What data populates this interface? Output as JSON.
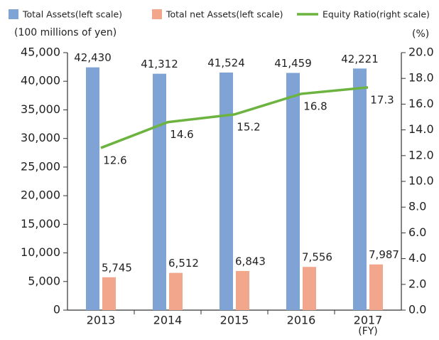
{
  "chart_data": {
    "type": "bar_line",
    "y_label": "(100 millions of yen)",
    "y2_label": "(%)",
    "x_unit_label": "(FY)",
    "categories": [
      "2013",
      "2014",
      "2015",
      "2016",
      "2017"
    ],
    "series": [
      {
        "name": "Total Assets(left scale)",
        "type": "bar",
        "color": "#7fa3d4",
        "values": [
          42430,
          41312,
          41524,
          41459,
          42221
        ],
        "value_labels": [
          "42,430",
          "41,312",
          "41,524",
          "41,459",
          "42,221"
        ]
      },
      {
        "name": "Total net Assets(left scale)",
        "type": "bar",
        "color": "#f2a68b",
        "values": [
          5745,
          6512,
          6843,
          7556,
          7987
        ],
        "value_labels": [
          "5,745",
          "6,512",
          "6,843",
          "7,556",
          "7,987"
        ]
      },
      {
        "name": "Equity Ratio(right scale)",
        "type": "line",
        "axis": "y2",
        "color": "#6cb33f",
        "values": [
          12.6,
          14.6,
          15.2,
          16.8,
          17.3
        ]
      }
    ],
    "ylim": [
      0,
      45000
    ],
    "yticks": [
      0,
      {
        "value": 5000,
        "label": "5,000"
      },
      {
        "value": 10000,
        "label": "10,000"
      },
      {
        "value": 15000,
        "label": "15,000"
      },
      {
        "value": 20000,
        "label": "20,000"
      },
      {
        "value": 25000,
        "label": "25,000"
      },
      {
        "value": 30000,
        "label": "30,000"
      },
      {
        "value": 35000,
        "label": "35,000"
      },
      {
        "value": 40000,
        "label": "40,000"
      },
      {
        "value": 45000,
        "label": "45,000"
      }
    ],
    "y2lim": [
      0,
      20
    ],
    "y2ticks": [
      {
        "value": 0,
        "label": "0.0"
      },
      {
        "value": 2,
        "label": "2.0"
      },
      {
        "value": 4,
        "label": "4.0"
      },
      {
        "value": 6,
        "label": "6.0"
      },
      {
        "value": 8,
        "label": "8.0"
      },
      {
        "value": 10,
        "label": "10.0"
      },
      {
        "value": 12,
        "label": "12.0"
      },
      {
        "value": 14,
        "label": "14.0"
      },
      {
        "value": 16,
        "label": "16.0"
      },
      {
        "value": 18,
        "label": "18.0"
      },
      {
        "value": 20,
        "label": "20.0"
      }
    ],
    "grid": false
  }
}
